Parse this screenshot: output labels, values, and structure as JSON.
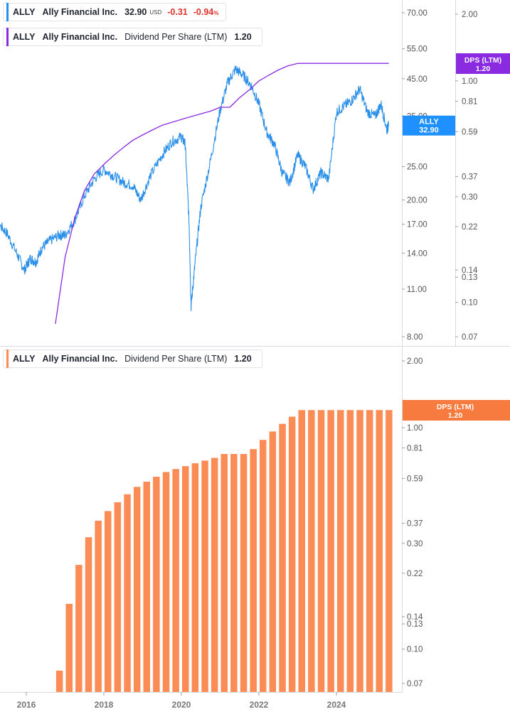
{
  "legends": {
    "price": {
      "ticker": "ALLY",
      "name": "Ally Financial Inc.",
      "price": "32.90",
      "currency": "USD",
      "change": "-0.31",
      "change_pct": "-0.94",
      "pct_sign": "%"
    },
    "dps_top": {
      "ticker": "ALLY",
      "name": "Ally Financial Inc.",
      "metric": "Dividend Per Share (LTM)",
      "value": "1.20"
    },
    "dps_bottom": {
      "ticker": "ALLY",
      "name": "Ally Financial Inc.",
      "metric": "Dividend Per Share (LTM)",
      "value": "1.20"
    }
  },
  "colors": {
    "price": "#2a8fe8",
    "dps_line": "#8a2be2",
    "bars": "#fb8c55",
    "bar_badge": "#f77a3f",
    "dps_badge": "#8a2be2",
    "price_badge": "#1e90ff"
  },
  "chart_data": [
    {
      "type": "line",
      "scale": "log",
      "series": [
        {
          "name": "ALLY",
          "x": [
            2015.0,
            2015.25,
            2015.5,
            2015.75,
            2015.95,
            2016.1,
            2016.25,
            2016.4,
            2016.6,
            2016.85,
            2017.0,
            2017.25,
            2017.5,
            2017.75,
            2018.0,
            2018.25,
            2018.5,
            2018.75,
            2018.95,
            2019.2,
            2019.5,
            2019.75,
            2020.0,
            2020.1,
            2020.2,
            2020.25,
            2020.35,
            2020.5,
            2020.75,
            2021.0,
            2021.2,
            2021.4,
            2021.6,
            2021.8,
            2022.0,
            2022.2,
            2022.4,
            2022.6,
            2022.8,
            2023.0,
            2023.2,
            2023.4,
            2023.6,
            2023.8,
            2024.0,
            2024.2,
            2024.4,
            2024.6,
            2024.8,
            2025.0,
            2025.15,
            2025.3,
            2025.35
          ],
          "values": [
            18.2,
            17.2,
            16.0,
            14.0,
            12.5,
            13.5,
            13.2,
            14.5,
            15.2,
            15.8,
            15.8,
            17.5,
            20.5,
            23.0,
            24.5,
            23.5,
            22.5,
            22.0,
            20.0,
            23.5,
            27.0,
            29.5,
            30.5,
            29.0,
            17.0,
            9.8,
            13.0,
            19.0,
            26.0,
            36.5,
            44.0,
            48.0,
            46.0,
            43.0,
            38.0,
            31.5,
            29.0,
            24.0,
            22.5,
            27.0,
            25.0,
            21.5,
            24.0,
            23.0,
            36.0,
            37.5,
            39.0,
            42.0,
            36.0,
            35.0,
            38.0,
            32.0,
            32.9
          ]
        },
        {
          "name": "Dividend Per Share (LTM)",
          "x": [
            2016.75,
            2017.0,
            2017.25,
            2017.5,
            2017.75,
            2018.0,
            2018.25,
            2018.5,
            2018.75,
            2019.0,
            2019.25,
            2019.5,
            2019.75,
            2020.0,
            2020.25,
            2020.5,
            2020.75,
            2021.0,
            2021.25,
            2021.5,
            2021.75,
            2022.0,
            2022.25,
            2022.5,
            2022.75,
            2023.0,
            2025.35
          ],
          "values": [
            0.08,
            0.16,
            0.24,
            0.32,
            0.38,
            0.42,
            0.46,
            0.5,
            0.54,
            0.57,
            0.6,
            0.63,
            0.65,
            0.67,
            0.69,
            0.71,
            0.73,
            0.76,
            0.76,
            0.84,
            0.91,
            1.0,
            1.06,
            1.12,
            1.17,
            1.2,
            1.2
          ]
        }
      ],
      "price_axis_ticks": [
        "70.00",
        "55.00",
        "45.00",
        "35.00",
        "25.00",
        "20.00",
        "17.00",
        "14.00",
        "11.00",
        "8.00"
      ],
      "dps_axis_ticks": [
        "2.00",
        "1.00",
        "0.81",
        "0.59",
        "0.37",
        "0.30",
        "0.22",
        "0.14",
        "0.13",
        "0.10",
        "0.07"
      ],
      "badges": {
        "price": {
          "ticker": "ALLY",
          "value": "32.90"
        },
        "dps": {
          "label": "DPS (LTM)",
          "value": "1.20"
        }
      }
    },
    {
      "type": "bar",
      "scale": "log",
      "series": [
        {
          "name": "Dividend Per Share (LTM)",
          "x": [
            2016.75,
            2017.0,
            2017.25,
            2017.5,
            2017.75,
            2018.0,
            2018.25,
            2018.5,
            2018.75,
            2019.0,
            2019.25,
            2019.5,
            2019.75,
            2020.0,
            2020.25,
            2020.5,
            2020.75,
            2021.0,
            2021.25,
            2021.5,
            2021.75,
            2022.0,
            2022.25,
            2022.5,
            2022.75,
            2023.0,
            2023.25,
            2023.5,
            2023.75,
            2024.0,
            2024.25,
            2024.5,
            2024.75,
            2025.0,
            2025.25
          ],
          "values": [
            0.08,
            0.16,
            0.24,
            0.32,
            0.38,
            0.42,
            0.46,
            0.5,
            0.54,
            0.57,
            0.6,
            0.63,
            0.65,
            0.67,
            0.69,
            0.71,
            0.73,
            0.76,
            0.76,
            0.76,
            0.8,
            0.88,
            0.96,
            1.04,
            1.12,
            1.2,
            1.2,
            1.2,
            1.2,
            1.2,
            1.2,
            1.2,
            1.2,
            1.2,
            1.2
          ]
        }
      ],
      "axis_ticks": [
        "2.00",
        "1.00",
        "0.81",
        "0.59",
        "0.37",
        "0.30",
        "0.22",
        "0.14",
        "0.13",
        "0.10",
        "0.07"
      ],
      "x_ticks": [
        "2016",
        "2018",
        "2020",
        "2022",
        "2024"
      ],
      "badge": {
        "label": "DPS (LTM)",
        "value": "1.20"
      }
    }
  ]
}
